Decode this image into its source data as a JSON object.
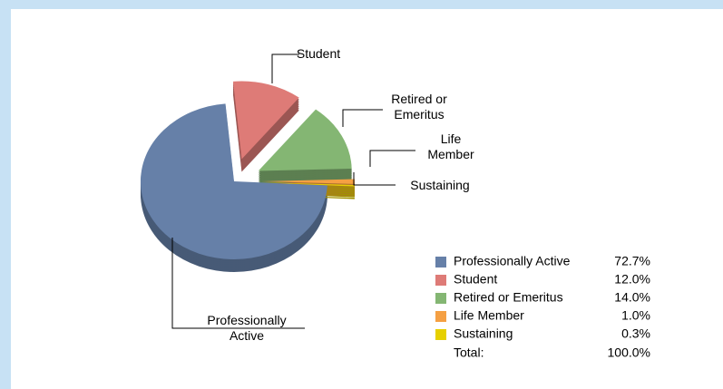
{
  "chart_data": {
    "type": "pie",
    "categories": [
      "Professionally Active",
      "Student",
      "Retired or Emeritus",
      "Life Member",
      "Sustaining"
    ],
    "values": [
      72.7,
      12.0,
      14.0,
      1.0,
      0.3
    ],
    "value_labels": [
      "72.7%",
      "12.0%",
      "14.0%",
      "1.0%",
      "0.3%"
    ],
    "colors": [
      "#6680a8",
      "#de7b77",
      "#84b673",
      "#f5a043",
      "#e6d000"
    ],
    "total_label": "Total:",
    "total": 100.0,
    "total_value_label": "100.0%"
  }
}
